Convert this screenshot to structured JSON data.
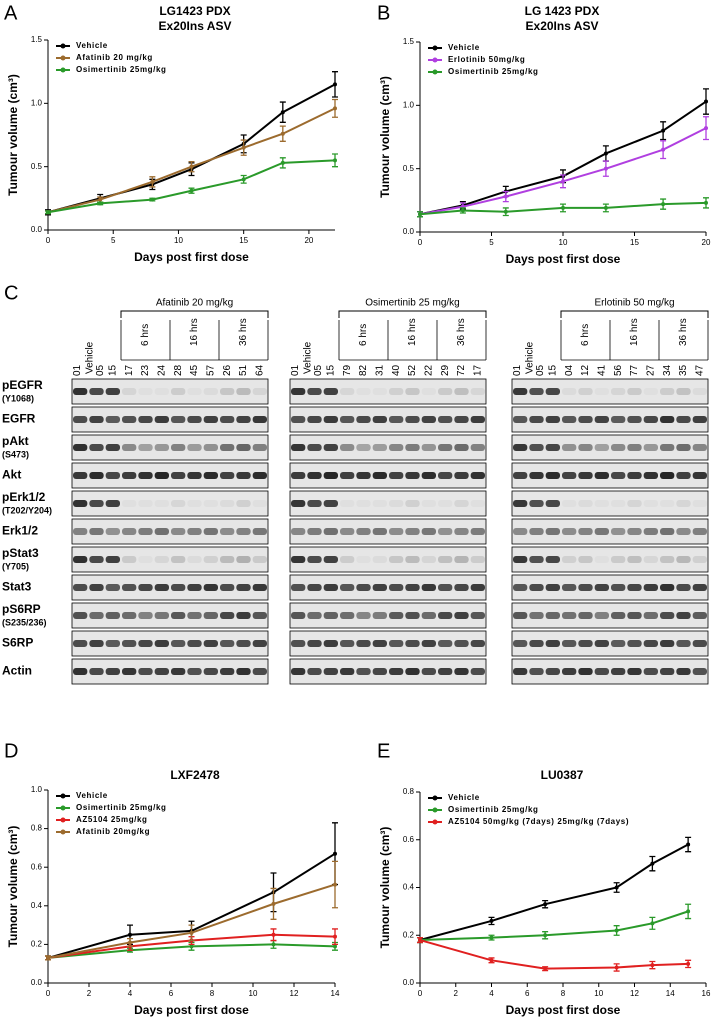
{
  "panel_labels": [
    "A",
    "B",
    "C",
    "D",
    "E"
  ],
  "chart_data": [
    {
      "type": "line",
      "title": "LG1423 PDX",
      "subtitle": "Ex20Ins ASV",
      "x_label": "Days post first dose",
      "y_label": "Tumour volume (cm³)",
      "x": [
        0,
        4,
        8,
        11,
        15,
        18,
        22
      ],
      "xlim": [
        0,
        22
      ],
      "xticks": [
        0,
        5,
        10,
        15,
        20
      ],
      "ylim": [
        0,
        1.5
      ],
      "yticks": [
        {
          "value": 0,
          "label": "0.0"
        },
        {
          "value": 0.5,
          "label": "0.5"
        },
        {
          "value": 1,
          "label": "1.0"
        },
        {
          "value": 1.5,
          "label": "1.5"
        }
      ],
      "legend": "upper left",
      "series": [
        {
          "name": "Vehicle",
          "color": "#000000",
          "values": [
            0.14,
            0.25,
            0.36,
            0.48,
            0.68,
            0.93,
            1.15
          ],
          "errors": [
            0.02,
            0.03,
            0.04,
            0.05,
            0.07,
            0.08,
            0.1
          ]
        },
        {
          "name": "Afatinib 20 mg/kg",
          "color": "#9c6b2e",
          "values": [
            0.14,
            0.24,
            0.38,
            0.5,
            0.65,
            0.76,
            0.96
          ],
          "errors": [
            0.01,
            0.02,
            0.04,
            0.04,
            0.06,
            0.06,
            0.07
          ]
        },
        {
          "name": "Osimertinib 25mg/kg",
          "color": "#2a9a2a",
          "values": [
            0.14,
            0.21,
            0.24,
            0.31,
            0.4,
            0.53,
            0.55
          ],
          "errors": [
            0.01,
            0.01,
            0.01,
            0.02,
            0.03,
            0.04,
            0.05
          ]
        }
      ]
    },
    {
      "type": "line",
      "title": "LG 1423 PDX",
      "subtitle": "Ex20Ins ASV",
      "x_label": "Days post first dose",
      "y_label": "Tumour volume (cm³)",
      "x": [
        0,
        3,
        6,
        10,
        13,
        17,
        20
      ],
      "xlim": [
        0,
        20
      ],
      "xticks": [
        0,
        5,
        10,
        15,
        20
      ],
      "ylim": [
        0,
        1.5
      ],
      "yticks": [
        {
          "value": 0,
          "label": "0.0"
        },
        {
          "value": 0.5,
          "label": "0.5"
        },
        {
          "value": 1,
          "label": "1.0"
        },
        {
          "value": 1.5,
          "label": "1.5"
        }
      ],
      "legend": "upper left",
      "series": [
        {
          "name": "Vehicle",
          "color": "#000000",
          "values": [
            0.14,
            0.21,
            0.32,
            0.44,
            0.62,
            0.8,
            1.03
          ],
          "errors": [
            0.02,
            0.03,
            0.04,
            0.05,
            0.06,
            0.07,
            0.1
          ]
        },
        {
          "name": "Erlotinib 50mg/kg",
          "color": "#b03fe0",
          "values": [
            0.14,
            0.2,
            0.28,
            0.4,
            0.5,
            0.65,
            0.82
          ],
          "errors": [
            0.02,
            0.03,
            0.04,
            0.05,
            0.06,
            0.07,
            0.09
          ]
        },
        {
          "name": "Osimertinib 25mg/kg",
          "color": "#2a9a2a",
          "values": [
            0.14,
            0.17,
            0.16,
            0.19,
            0.19,
            0.22,
            0.23
          ],
          "errors": [
            0.02,
            0.02,
            0.03,
            0.03,
            0.03,
            0.04,
            0.04
          ]
        }
      ]
    },
    {
      "type": "line",
      "title": "LXF2478",
      "x_label": "Days post first dose",
      "y_label": "Tumour volume (cm³)",
      "x": [
        0,
        4,
        7,
        11,
        14
      ],
      "xlim": [
        0,
        14
      ],
      "xticks": [
        0,
        2,
        4,
        6,
        8,
        10,
        12,
        14
      ],
      "ylim": [
        0,
        1
      ],
      "yticks": [
        {
          "value": 0,
          "label": "0.0"
        },
        {
          "value": 0.2,
          "label": "0.2"
        },
        {
          "value": 0.4,
          "label": "0.4"
        },
        {
          "value": 0.6,
          "label": "0.6"
        },
        {
          "value": 0.8,
          "label": "0.8"
        },
        {
          "value": 1,
          "label": "1.0"
        }
      ],
      "legend": "upper left",
      "series": [
        {
          "name": "Vehicle",
          "color": "#000000",
          "values": [
            0.13,
            0.25,
            0.27,
            0.47,
            0.67
          ],
          "errors": [
            0.01,
            0.05,
            0.05,
            0.1,
            0.16
          ]
        },
        {
          "name": "Osimertinib 25mg/kg",
          "color": "#2a9a2a",
          "values": [
            0.13,
            0.17,
            0.19,
            0.2,
            0.19
          ],
          "errors": [
            0.01,
            0.01,
            0.02,
            0.02,
            0.02
          ]
        },
        {
          "name": "AZ5104 25mg/kg",
          "color": "#e02020",
          "values": [
            0.13,
            0.19,
            0.22,
            0.25,
            0.24
          ],
          "errors": [
            0.01,
            0.02,
            0.02,
            0.03,
            0.04
          ]
        },
        {
          "name": "Afatinib 20mg/kg",
          "color": "#9c6b2e",
          "values": [
            0.13,
            0.21,
            0.26,
            0.41,
            0.51
          ],
          "errors": [
            0.01,
            0.02,
            0.04,
            0.08,
            0.12
          ]
        }
      ]
    },
    {
      "type": "line",
      "title": "LU0387",
      "x_label": "Days post first dose",
      "y_label": "Tumour volume (cm³)",
      "x": [
        0,
        4,
        7,
        11,
        13,
        15
      ],
      "xlim": [
        0,
        16
      ],
      "xticks": [
        0,
        2,
        4,
        6,
        8,
        10,
        12,
        14,
        16
      ],
      "ylim": [
        0,
        0.8
      ],
      "yticks": [
        {
          "value": 0,
          "label": "0.0"
        },
        {
          "value": 0.2,
          "label": "0.2"
        },
        {
          "value": 0.4,
          "label": "0.4"
        },
        {
          "value": 0.6,
          "label": "0.6"
        },
        {
          "value": 0.8,
          "label": "0.8"
        }
      ],
      "legend": "upper left",
      "series": [
        {
          "name": "Vehicle",
          "color": "#000000",
          "values": [
            0.18,
            0.26,
            0.33,
            0.4,
            0.5,
            0.58
          ],
          "errors": [
            0.01,
            0.015,
            0.015,
            0.02,
            0.03,
            0.03
          ]
        },
        {
          "name": "Osimertinib 25mg/kg",
          "color": "#2a9a2a",
          "values": [
            0.18,
            0.19,
            0.2,
            0.22,
            0.25,
            0.3
          ],
          "errors": [
            0.01,
            0.01,
            0.015,
            0.02,
            0.025,
            0.03
          ]
        },
        {
          "name": "AZ5104 50mg/kg (7days) 25mg/kg (7days)",
          "color": "#e02020",
          "values": [
            0.18,
            0.095,
            0.06,
            0.065,
            0.075,
            0.08
          ],
          "errors": [
            0.01,
            0.01,
            0.008,
            0.015,
            0.015,
            0.015
          ]
        }
      ]
    }
  ],
  "blot": {
    "panels": [
      {
        "treatment": "Afatinib 20 mg/kg",
        "vehicle": "Vehicle",
        "timepoints": [
          "6 hrs",
          "16 hrs",
          "36 hrs"
        ],
        "samples": [
          "01",
          "05",
          "15",
          "17",
          "23",
          "24",
          "28",
          "45",
          "57",
          "26",
          "51",
          "64"
        ]
      },
      {
        "treatment": "Osimertinib 25 mg/kg",
        "vehicle": "Vehicle",
        "timepoints": [
          "6 hrs",
          "16 hrs",
          "36 hrs"
        ],
        "samples": [
          "01",
          "05",
          "15",
          "79",
          "82",
          "31",
          "40",
          "52",
          "22",
          "29",
          "72",
          "17"
        ]
      },
      {
        "treatment": "Erlotinib 50 mg/kg",
        "vehicle": "Vehicle",
        "timepoints": [
          "6 hrs",
          "16 hrs",
          "36 hrs"
        ],
        "samples": [
          "01",
          "05",
          "15",
          "04",
          "12",
          "41",
          "56",
          "77",
          "27",
          "34",
          "35",
          "47"
        ]
      }
    ],
    "rows": [
      {
        "name": "pEGFR",
        "site": "(Y1068)"
      },
      {
        "name": "EGFR"
      },
      {
        "name": "pAkt",
        "site": "(S473)"
      },
      {
        "name": "Akt"
      },
      {
        "name": "pErk1/2",
        "site": "(T202/Y204)"
      },
      {
        "name": "Erk1/2"
      },
      {
        "name": "pStat3",
        "site": "(Y705)"
      },
      {
        "name": "Stat3"
      },
      {
        "name": "pS6RP",
        "site": "(S235/236)"
      },
      {
        "name": "S6RP"
      },
      {
        "name": "Actin"
      }
    ]
  }
}
